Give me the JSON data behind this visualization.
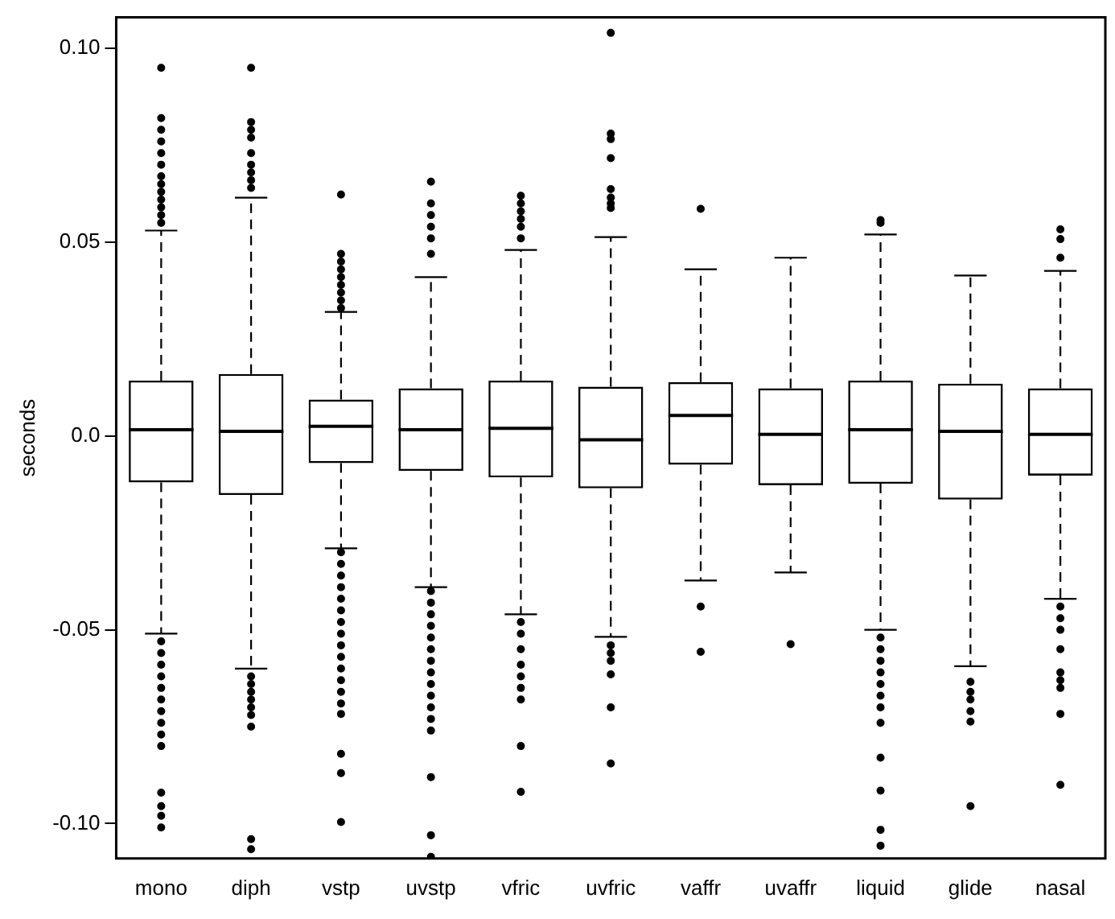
{
  "chart_data": {
    "type": "box",
    "ylabel": "seconds",
    "categories": [
      "mono",
      "diph",
      "vstp",
      "uvstp",
      "vfric",
      "uvfric",
      "vaffr",
      "uvaffr",
      "liquid",
      "glide",
      "nasal"
    ],
    "ylim": [
      -0.109,
      0.108
    ],
    "yticks": [
      {
        "value": -0.1,
        "label": "-0.10"
      },
      {
        "value": -0.05,
        "label": "-0.05"
      },
      {
        "value": 0,
        "label": "0.0"
      },
      0.05,
      {
        "value": 0.1,
        "label": "0.10"
      }
    ],
    "boxes": [
      {
        "low": -0.051,
        "q1": -0.012,
        "median": 0.0016,
        "q3": 0.0143,
        "high": 0.053,
        "outliers": [
          0.095,
          0.082,
          0.079,
          0.076,
          0.073,
          0.07,
          0.067,
          0.065,
          0.063,
          0.061,
          0.059,
          0.057,
          0.055,
          -0.053,
          -0.056,
          -0.059,
          -0.062,
          -0.065,
          -0.068,
          -0.071,
          -0.074,
          -0.077,
          -0.08,
          -0.092,
          -0.0955,
          -0.098,
          -0.101
        ]
      },
      {
        "low": -0.06,
        "q1": -0.0152,
        "median": 0.0012,
        "q3": 0.016,
        "high": 0.0615,
        "outliers": [
          0.095,
          0.081,
          0.079,
          0.077,
          0.073,
          0.07,
          0.068,
          0.066,
          0.064,
          -0.062,
          -0.064,
          -0.066,
          -0.068,
          -0.07,
          -0.072,
          -0.075,
          -0.104,
          -0.1066
        ]
      },
      {
        "low": -0.029,
        "q1": -0.007,
        "median": 0.0025,
        "q3": 0.0094,
        "high": 0.032,
        "outliers": [
          0.0623,
          0.047,
          0.045,
          0.043,
          0.041,
          0.039,
          0.037,
          0.035,
          0.033,
          -0.03,
          -0.033,
          -0.036,
          -0.039,
          -0.042,
          -0.045,
          -0.048,
          -0.051,
          -0.054,
          -0.057,
          -0.06,
          -0.063,
          -0.066,
          -0.069,
          -0.0717,
          -0.082,
          -0.087,
          -0.0996
        ]
      },
      {
        "low": -0.039,
        "q1": -0.009,
        "median": 0.0016,
        "q3": 0.0123,
        "high": 0.041,
        "outliers": [
          0.0656,
          0.06,
          0.057,
          0.054,
          0.051,
          0.047,
          -0.04,
          -0.043,
          -0.046,
          -0.049,
          -0.052,
          -0.055,
          -0.058,
          -0.061,
          -0.064,
          -0.067,
          -0.07,
          -0.073,
          -0.076,
          -0.088,
          -0.103,
          -0.1086
        ]
      },
      {
        "low": -0.046,
        "q1": -0.0107,
        "median": 0.002,
        "q3": 0.0143,
        "high": 0.048,
        "outliers": [
          0.062,
          0.06,
          0.058,
          0.056,
          0.054,
          0.051,
          -0.048,
          -0.051,
          -0.055,
          -0.059,
          -0.062,
          -0.065,
          -0.068,
          -0.08,
          -0.0918
        ]
      },
      {
        "low": -0.0518,
        "q1": -0.0135,
        "median": -0.001,
        "q3": 0.0127,
        "high": 0.0513,
        "outliers": [
          0.104,
          0.078,
          0.0766,
          0.0717,
          0.0637,
          0.0615,
          0.06,
          0.0588,
          -0.054,
          -0.056,
          -0.058,
          -0.0615,
          -0.07,
          -0.0845
        ]
      },
      {
        "low": -0.0373,
        "q1": -0.0074,
        "median": 0.0053,
        "q3": 0.0139,
        "high": 0.043,
        "outliers": [
          0.0586,
          -0.044,
          -0.0557
        ]
      },
      {
        "low": -0.0352,
        "q1": -0.0127,
        "median": 0.0004,
        "q3": 0.0123,
        "high": 0.046,
        "outliers": [
          -0.0537
        ]
      },
      {
        "low": -0.05,
        "q1": -0.0123,
        "median": 0.0016,
        "q3": 0.0143,
        "high": 0.052,
        "outliers": [
          0.0557,
          0.055,
          -0.052,
          -0.055,
          -0.058,
          -0.061,
          -0.064,
          -0.067,
          -0.07,
          -0.074,
          -0.083,
          -0.0915,
          -0.1016,
          -0.1057
        ]
      },
      {
        "low": -0.0594,
        "q1": -0.0164,
        "median": 0.0012,
        "q3": 0.0135,
        "high": 0.0414,
        "outliers": [
          -0.0634,
          -0.066,
          -0.068,
          -0.071,
          -0.0737,
          -0.0955
        ]
      },
      {
        "low": -0.042,
        "q1": -0.0102,
        "median": 0.0004,
        "q3": 0.0123,
        "high": 0.0426,
        "outliers": [
          0.0533,
          0.0508,
          0.046,
          -0.044,
          -0.047,
          -0.05,
          -0.055,
          -0.061,
          -0.063,
          -0.065,
          -0.0717,
          -0.09
        ]
      }
    ]
  }
}
